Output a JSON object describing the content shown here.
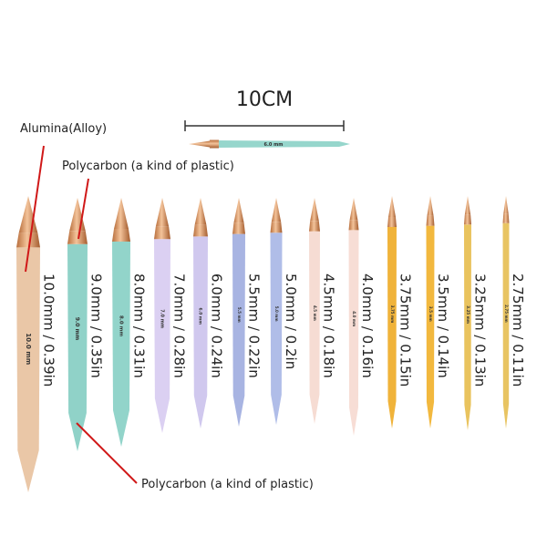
{
  "scale_label": "10CM",
  "sample_needle": {
    "tag": "6.0 mm",
    "color": "#96d6cc"
  },
  "annotations": {
    "alloy": "Alumina(Alloy)",
    "plastic_top": "Polycarbon (a kind of plastic)",
    "plastic_bottom": "Polycarbon (a kind of plastic)"
  },
  "needles": [
    {
      "label": "10.0mm / 0.39in",
      "tag": "10.0 mm",
      "color": "#eac7a7"
    },
    {
      "label": "9.0mm / 0.35in",
      "tag": "9.0 mm",
      "color": "#90d2c8"
    },
    {
      "label": "8.0mm / 0.31in",
      "tag": "8.0 mm",
      "color": "#92d4ca"
    },
    {
      "label": "7.0mm / 0.28in",
      "tag": "7.0 mm",
      "color": "#dbd0f2"
    },
    {
      "label": "6.0mm / 0.24in",
      "tag": "6.0 mm",
      "color": "#d0c8ee"
    },
    {
      "label": "5.5mm / 0.22in",
      "tag": "5.5 mm",
      "color": "#a8b4e2"
    },
    {
      "label": "5.0mm / 0.2in",
      "tag": "5.0 mm",
      "color": "#b0bde8"
    },
    {
      "label": "4.5mm / 0.18in",
      "tag": "4.5 mm",
      "color": "#f6dcd3"
    },
    {
      "label": "4.0mm / 0.16in",
      "tag": "4.0 mm",
      "color": "#f7ddd5"
    },
    {
      "label": "3.75mm / 0.15in",
      "tag": "3.75 mm",
      "color": "#f0b33a"
    },
    {
      "label": "3.5mm / 0.14in",
      "tag": "3.5 mm",
      "color": "#f2b83e"
    },
    {
      "label": "3.25mm / 0.13in",
      "tag": "3.25 mm",
      "color": "#e9c35e"
    },
    {
      "label": "2.75mm / 0.11in",
      "tag": "2.75 mm",
      "color": "#e8c462"
    }
  ]
}
